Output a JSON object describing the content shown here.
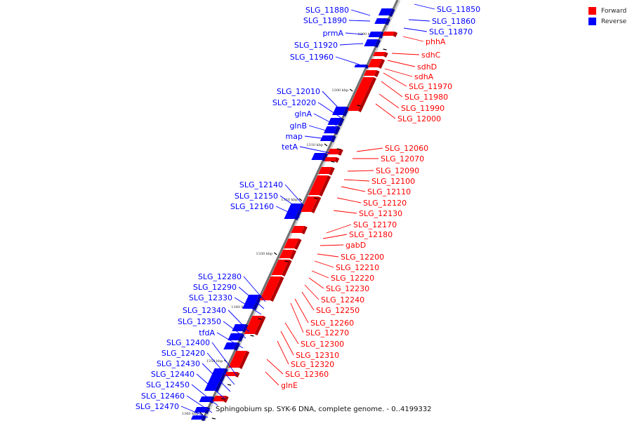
{
  "legend": {
    "forward": {
      "label": "Forward",
      "color": "#ff0000"
    },
    "reverse": {
      "label": "Reverse",
      "color": "#0000ff"
    }
  },
  "caption": "Sphingobium sp. SYK-6 DNA, complete genome. - 0..4199332",
  "ticks": [
    "1290 kbp",
    "1300 kbp",
    "1310 kbp",
    "1320 kbp",
    "1330 kbp",
    "1340 kbp",
    "1350 kbp",
    "1360 kbp"
  ],
  "reverse_genes": [
    "SLG_11880",
    "SLG_11890",
    "prmA",
    "SLG_11920",
    "SLG_11960",
    "SLG_12010",
    "SLG_12020",
    "glnA",
    "glnB",
    "map",
    "tetA",
    "SLG_12140",
    "SLG_12150",
    "SLG_12160",
    "SLG_12280",
    "SLG_12290",
    "SLG_12330",
    "SLG_12340",
    "SLG_12350",
    "tfdA",
    "SLG_12400",
    "SLG_12420",
    "SLG_12430",
    "SLG_12440",
    "SLG_12450",
    "SLG_12460",
    "SLG_12470"
  ],
  "reverse_genes_right": [
    "SLG_11850",
    "SLG_11860",
    "SLG_11870"
  ],
  "forward_genes": [
    "phhA",
    "sdhC",
    "sdhD",
    "sdhA",
    "SLG_11970",
    "SLG_11980",
    "SLG_11990",
    "SLG_12000",
    "SLG_12060",
    "SLG_12070",
    "SLG_12090",
    "SLG_12100",
    "SLG_12110",
    "SLG_12120",
    "SLG_12130",
    "SLG_12170",
    "SLG_12180",
    "gabD",
    "SLG_12200",
    "SLG_12210",
    "SLG_12220",
    "SLG_12230",
    "SLG_12240",
    "SLG_12250",
    "SLG_12260",
    "SLG_12270",
    "SLG_12300",
    "SLG_12310",
    "SLG_12320",
    "SLG_12360",
    "glnE"
  ]
}
